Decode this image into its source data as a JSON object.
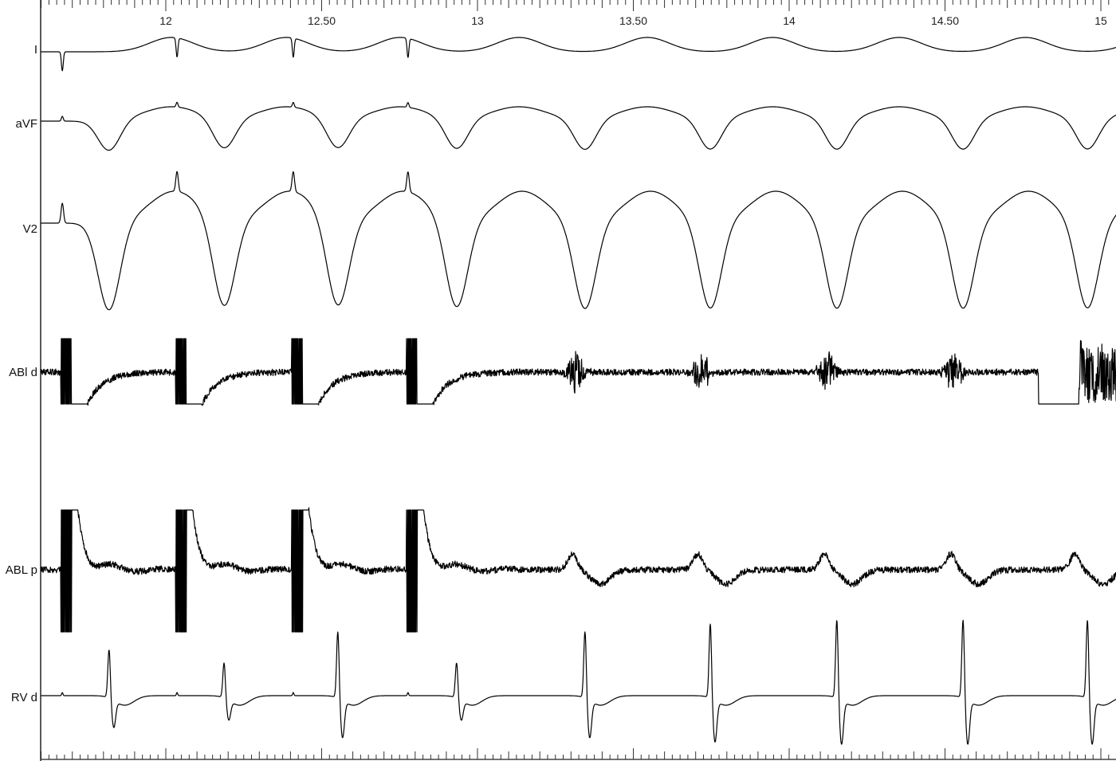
{
  "chart_data": {
    "type": "line",
    "title": "",
    "xlabel": "",
    "ylabel": "",
    "xlim": [
      11.6,
      15.05
    ],
    "tick_labels": [
      "12",
      "12.50",
      "13",
      "13.50",
      "14",
      "14.50",
      "15"
    ],
    "tick_values": [
      12,
      12.5,
      13,
      13.5,
      14,
      14.5,
      15
    ],
    "minor_tick_step": 0.025,
    "grid": false,
    "channels": [
      {
        "name": "I"
      },
      {
        "name": "aVF"
      },
      {
        "name": "V2"
      },
      {
        "name": "ABl d"
      },
      {
        "name": "ABL p"
      },
      {
        "name": "RV d"
      }
    ],
    "pacing_stimulus_times": [
      11.668,
      12.036,
      12.409,
      12.777
    ],
    "ventricular_beat_times": [
      11.818,
      12.187,
      12.552,
      12.933,
      13.345,
      13.747,
      14.153,
      14.558,
      14.957
    ],
    "trace_color": "#000000"
  }
}
